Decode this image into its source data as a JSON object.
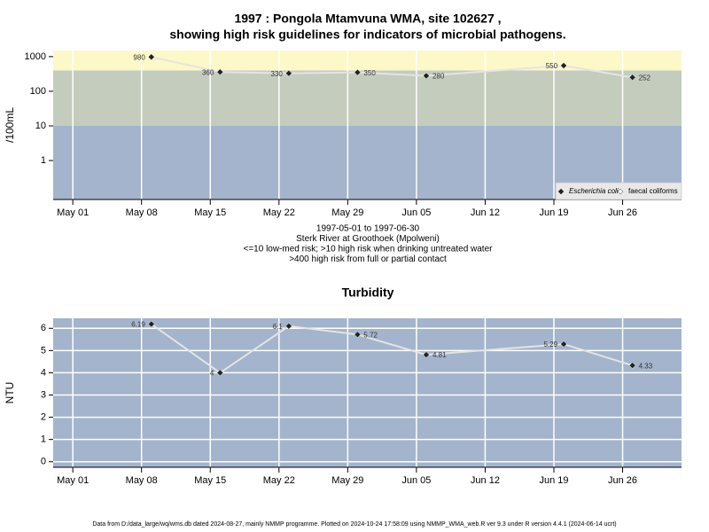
{
  "chart_data": [
    {
      "type": "line",
      "title": [
        "1997 : Pongola Mtamvuna WMA, site 102627 ,",
        "showing high risk guidelines for indicators of microbial pathogens."
      ],
      "ylabel": "/100mL",
      "notes": [
        "1997-05-01 to 1997-06-30",
        "Sterk River at Groothoek (Mpolweni)",
        "<=10 low-med risk; >10 high risk when drinking untreated water",
        ">400 high risk from full or partial contact"
      ],
      "log_scale": true,
      "grid": "x",
      "legend": "bottom-right",
      "bands": [
        {
          "from": 0.075,
          "to": 10,
          "color": "#a3b4cc"
        },
        {
          "from": 10,
          "to": 400,
          "color": "#c4ccbe"
        },
        {
          "from": 400,
          "to": 1500,
          "color": "#fdf8c8"
        }
      ],
      "x": [
        "1997-05-09",
        "1997-05-16",
        "1997-05-23",
        "1997-05-30",
        "1997-06-06",
        "1997-06-20",
        "1997-06-27"
      ],
      "xlim": [
        "1997-04-29",
        "1997-07-02"
      ],
      "xticks": [
        {
          "value": "1997-05-01",
          "label": "May 01"
        },
        {
          "value": "1997-05-08",
          "label": "May 08"
        },
        {
          "value": "1997-05-15",
          "label": "May 15"
        },
        {
          "value": "1997-05-22",
          "label": "May 22"
        },
        {
          "value": "1997-05-29",
          "label": "May 29"
        },
        {
          "value": "1997-06-05",
          "label": "Jun 05"
        },
        {
          "value": "1997-06-12",
          "label": "Jun 12"
        },
        {
          "value": "1997-06-19",
          "label": "Jun 19"
        },
        {
          "value": "1997-06-26",
          "label": "Jun 26"
        }
      ],
      "ylim": [
        0.075,
        1500
      ],
      "yticks": [
        1,
        10,
        100,
        1000
      ],
      "series": [
        {
          "name": "Escherichia coli",
          "color": "#222222",
          "values": [
            980,
            360,
            330,
            350,
            280,
            550,
            252
          ]
        },
        {
          "name": "faecal coliforms",
          "color": "#ffffff",
          "values": [
            null,
            null,
            null,
            null,
            null,
            null,
            null
          ]
        }
      ]
    },
    {
      "type": "line",
      "title": [
        "Turbidity"
      ],
      "ylabel": "NTU",
      "grid": "both",
      "bands": [
        {
          "from": -0.25,
          "to": 6.45,
          "color": "#a3b4cc"
        }
      ],
      "x": [
        "1997-05-09",
        "1997-05-16",
        "1997-05-23",
        "1997-05-30",
        "1997-06-06",
        "1997-06-20",
        "1997-06-27"
      ],
      "xlim": [
        "1997-04-29",
        "1997-07-02"
      ],
      "xticks": [
        {
          "value": "1997-05-01",
          "label": "May 01"
        },
        {
          "value": "1997-05-08",
          "label": "May 08"
        },
        {
          "value": "1997-05-15",
          "label": "May 15"
        },
        {
          "value": "1997-05-22",
          "label": "May 22"
        },
        {
          "value": "1997-05-29",
          "label": "May 29"
        },
        {
          "value": "1997-06-05",
          "label": "Jun 05"
        },
        {
          "value": "1997-06-12",
          "label": "Jun 12"
        },
        {
          "value": "1997-06-19",
          "label": "Jun 19"
        },
        {
          "value": "1997-06-26",
          "label": "Jun 26"
        }
      ],
      "ylim": [
        -0.25,
        6.45
      ],
      "yticks": [
        0,
        1,
        2,
        3,
        4,
        5,
        6
      ],
      "series": [
        {
          "name": "Turbidity",
          "color": "#222222",
          "values": [
            6.19,
            4,
            6.1,
            5.72,
            4.81,
            5.29,
            4.33
          ]
        }
      ]
    }
  ],
  "footer": "Data from D:/data_large/wq/wms.db dated 2024-08-27, mainly NMMP programme. Plotted on 2024-10-24 17:58:09 using NMMP_WMA_web.R ver 9.3 under R version 4.4.1 (2024-06-14 ucrt)"
}
